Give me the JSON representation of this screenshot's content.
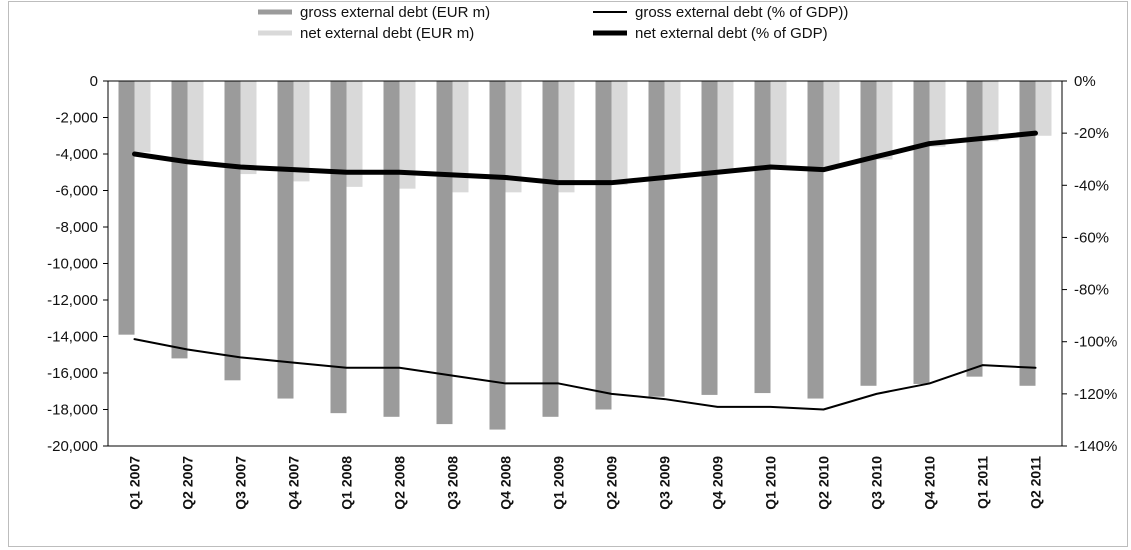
{
  "chart_data": {
    "type": "bar",
    "title": "",
    "categories": [
      "Q1 2007",
      "Q2 2007",
      "Q3 2007",
      "Q4 2007",
      "Q1 2008",
      "Q2 2008",
      "Q3 2008",
      "Q4 2008",
      "Q1 2009",
      "Q2 2009",
      "Q3 2009",
      "Q4 2009",
      "Q1 2010",
      "Q2 2010",
      "Q3 2010",
      "Q4 2010",
      "Q1 2011",
      "Q2 2011"
    ],
    "bar_series": [
      {
        "name": "gross external debt (EUR m)",
        "color": "#9b9b9b",
        "axis": "left",
        "values": [
          -13900,
          -15200,
          -16400,
          -17400,
          -18200,
          -18400,
          -18800,
          -19100,
          -18400,
          -18000,
          -17300,
          -17200,
          -17100,
          -17400,
          -16700,
          -16600,
          -16200,
          -16700
        ]
      },
      {
        "name": "net external debt (EUR m)",
        "color": "#d9d9d9",
        "axis": "left",
        "values": [
          -3900,
          -4400,
          -5100,
          -5500,
          -5800,
          -5900,
          -6100,
          -6100,
          -6100,
          -5700,
          -5200,
          -5000,
          -4600,
          -4700,
          -4300,
          -3600,
          -3300,
          -3000
        ]
      }
    ],
    "line_series": [
      {
        "name": "gross external debt (% of GDP))",
        "color": "#000000",
        "axis": "right",
        "style": "thin",
        "values": [
          -99,
          -103,
          -106,
          -108,
          -110,
          -110,
          -113,
          -116,
          -116,
          -120,
          -122,
          -125,
          -125,
          -126,
          -120,
          -116,
          -109,
          -110
        ]
      },
      {
        "name": "net external debt (% of GDP)",
        "color": "#000000",
        "axis": "right",
        "style": "thick",
        "values": [
          -28,
          -31,
          -33,
          -34,
          -35,
          -35,
          -36,
          -37,
          -39,
          -39,
          -37,
          -35,
          -33,
          -34,
          -29,
          -24,
          -22,
          -20
        ]
      }
    ],
    "left_axis": {
      "min": -20000,
      "max": 0,
      "ticks": [
        0,
        -2000,
        -4000,
        -6000,
        -8000,
        -10000,
        -12000,
        -14000,
        -16000,
        -18000,
        -20000
      ],
      "tick_labels": [
        "0",
        "-2,000",
        "-4,000",
        "-6,000",
        "-8,000",
        "-10,000",
        "-12,000",
        "-14,000",
        "-16,000",
        "-18,000",
        "-20,000"
      ]
    },
    "right_axis": {
      "min": -140,
      "max": 0,
      "ticks": [
        0,
        -20,
        -40,
        -60,
        -80,
        -100,
        -120,
        -140
      ],
      "tick_labels": [
        "0%",
        "-20%",
        "-40%",
        "-60%",
        "-80%",
        "-100%",
        "-120%",
        "-140%"
      ]
    },
    "grid": false,
    "legend_position": "top-center",
    "legend_order": [
      0,
      2,
      1,
      3
    ]
  }
}
